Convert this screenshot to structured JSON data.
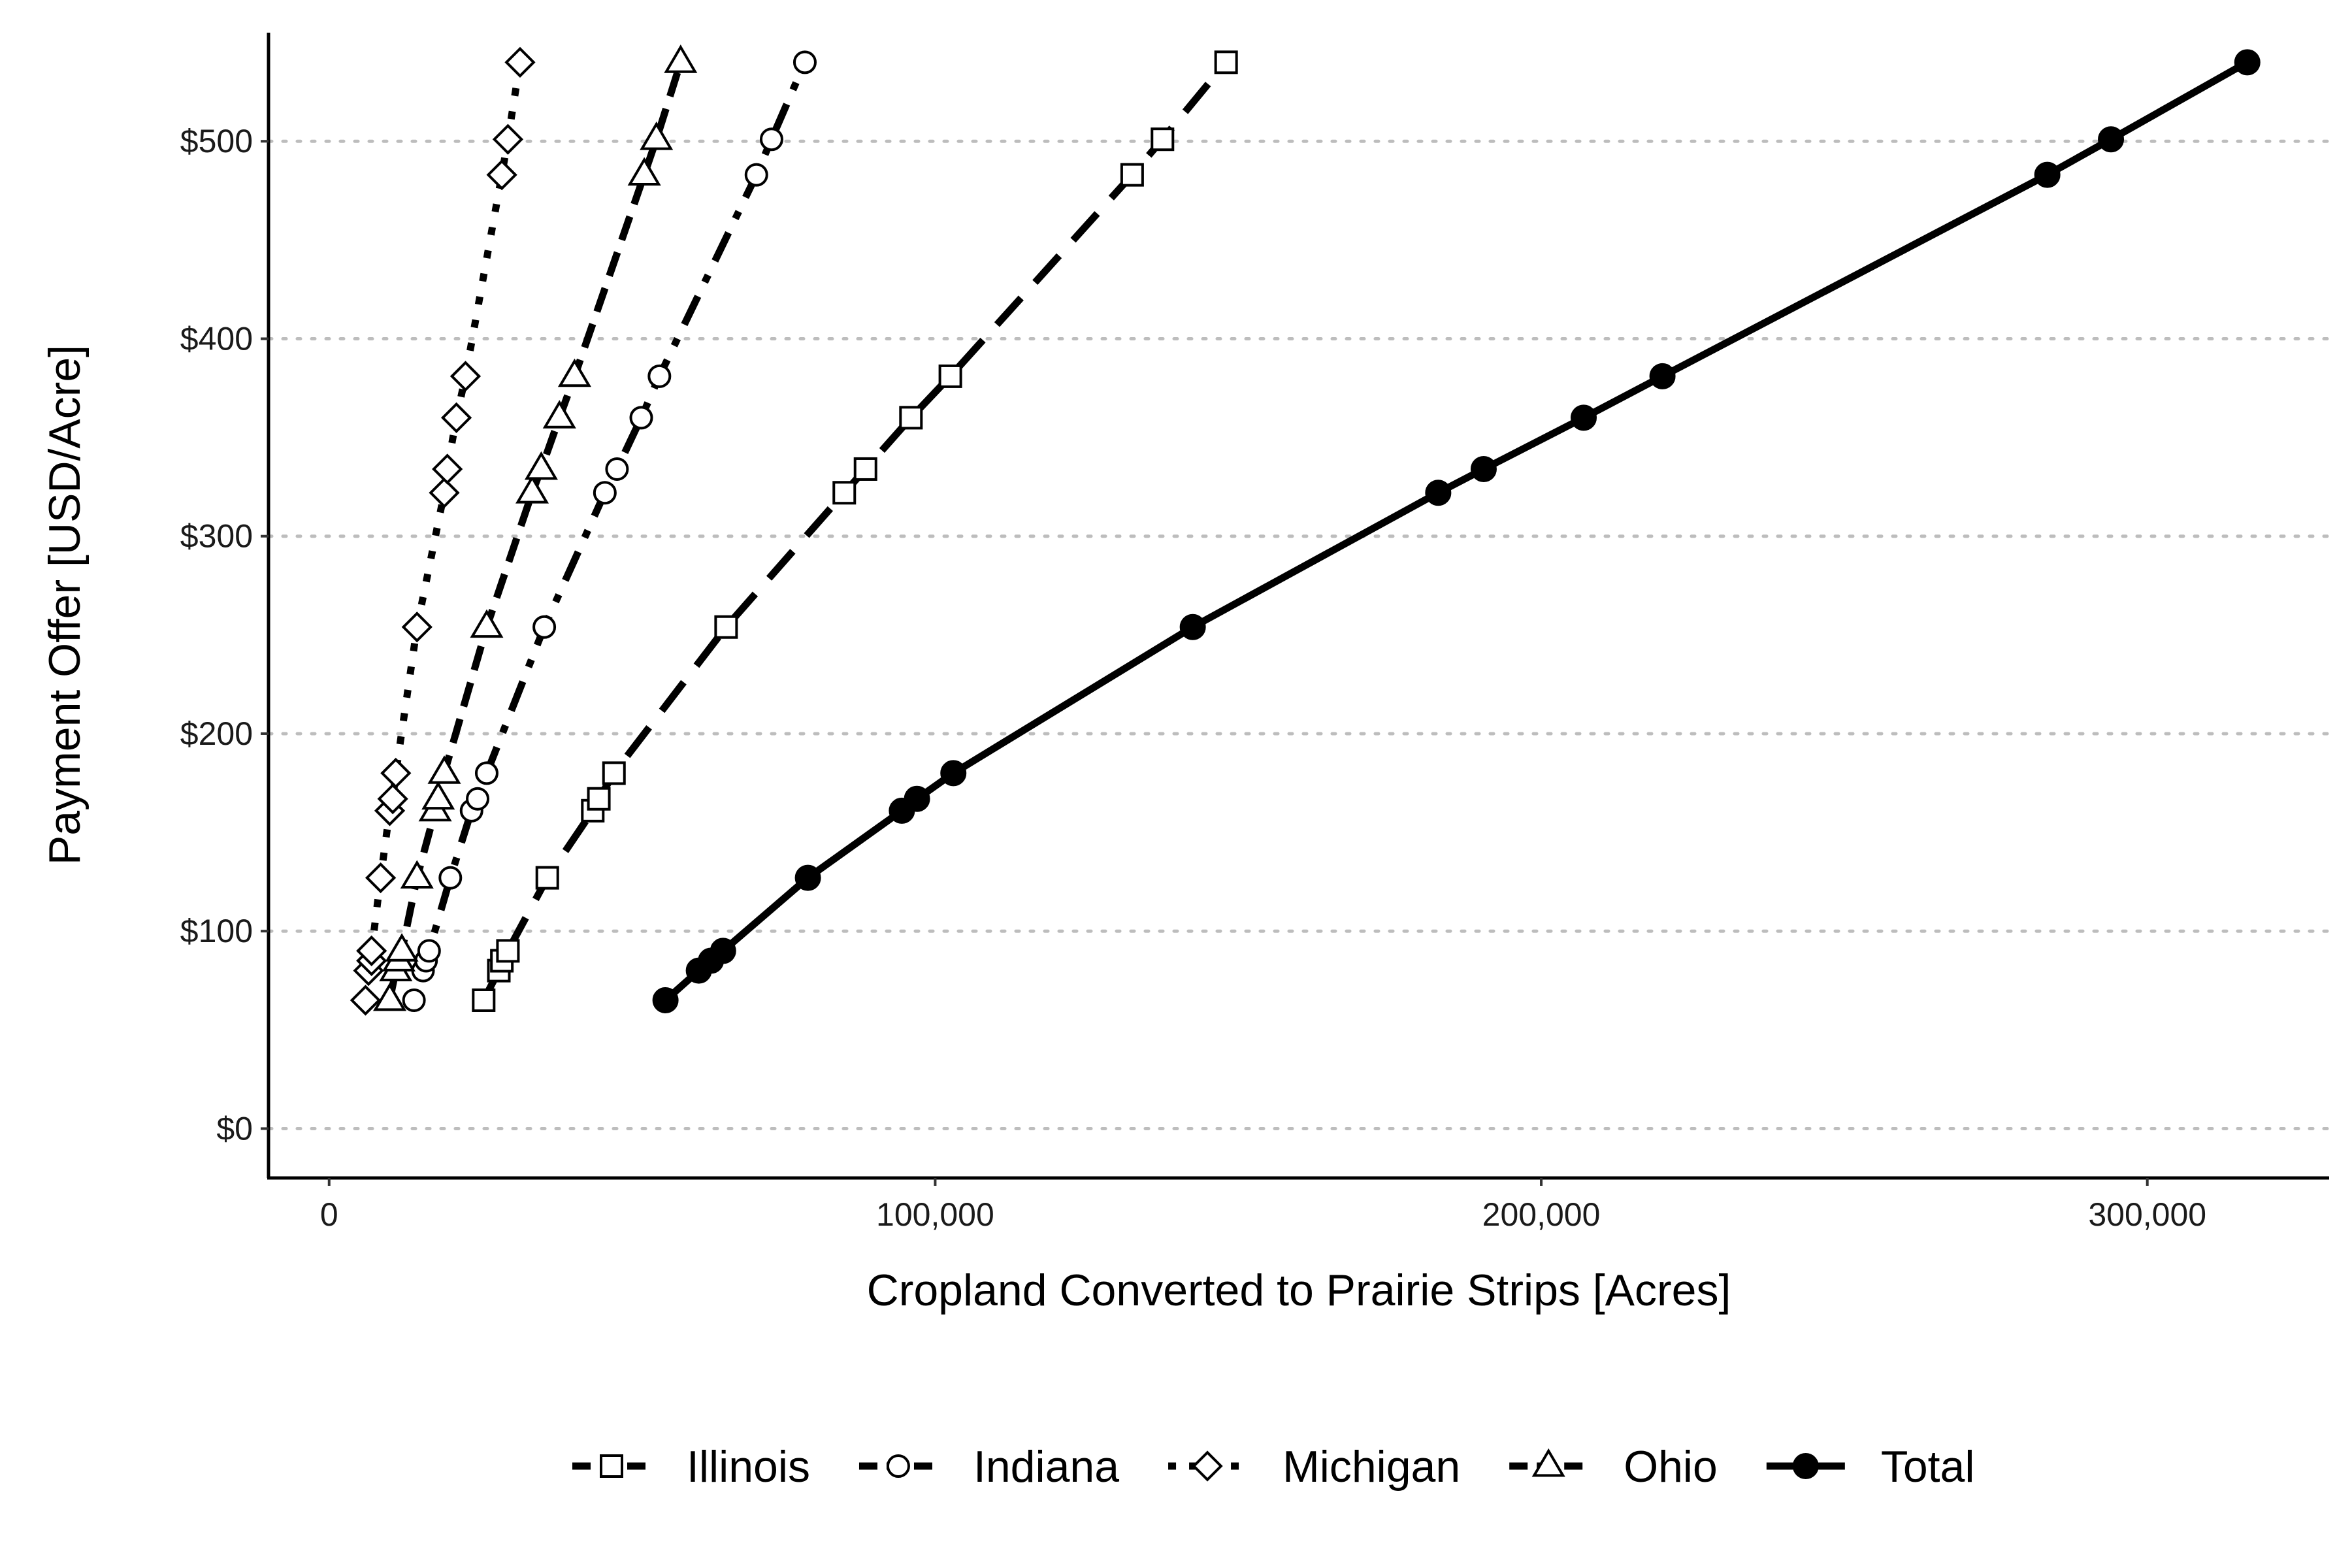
{
  "chart_data": {
    "type": "line",
    "xlabel": "Cropland Converted to Prairie Strips [Acres]",
    "ylabel": "Payment Offer [USD/Acre]",
    "xlim": [
      -10000,
      330000
    ],
    "ylim": [
      -25,
      555
    ],
    "x_ticks": [
      0,
      100000,
      200000,
      300000
    ],
    "x_tick_labels": [
      "0",
      "100,000",
      "200,000",
      "300,000"
    ],
    "y_ticks": [
      0,
      100,
      200,
      300,
      400,
      500
    ],
    "y_tick_labels": [
      "$0",
      "$100",
      "$200",
      "$300",
      "$400",
      "$500"
    ],
    "grid": "horizontal dotted",
    "legend_position": "bottom",
    "colors": {
      "line": "#000000",
      "grid": "#bdbdbd",
      "marker_fill_open": "#ffffff"
    },
    "series": [
      {
        "name": "Illinois",
        "marker": "square",
        "dash": "long-dash",
        "x": [
          25500,
          28000,
          28500,
          29500,
          36000,
          43500,
          44500,
          47000,
          65500,
          85000,
          88500,
          96000,
          102500,
          132500,
          137500,
          148000
        ],
        "y": [
          65,
          80,
          85,
          90,
          127,
          161,
          167,
          180,
          254,
          322,
          334,
          360,
          381,
          483,
          501,
          540
        ]
      },
      {
        "name": "Indiana",
        "marker": "circle",
        "dash": "dot-dash",
        "x": [
          14000,
          15500,
          16000,
          16500,
          20000,
          23500,
          24500,
          26000,
          35500,
          45500,
          47500,
          51500,
          54500,
          70500,
          73000,
          78500
        ],
        "y": [
          65,
          80,
          85,
          90,
          127,
          161,
          167,
          180,
          254,
          322,
          334,
          360,
          381,
          483,
          501,
          540
        ]
      },
      {
        "name": "Michigan",
        "marker": "diamond",
        "dash": "dotted",
        "x": [
          6000,
          6500,
          7000,
          7000,
          8500,
          10000,
          10500,
          11000,
          14500,
          19000,
          19500,
          21000,
          22500,
          28500,
          29500,
          31500
        ],
        "y": [
          65,
          80,
          85,
          90,
          127,
          161,
          167,
          180,
          254,
          322,
          334,
          360,
          381,
          483,
          501,
          540
        ]
      },
      {
        "name": "Ohio",
        "marker": "triangle",
        "dash": "dashed",
        "x": [
          10000,
          11000,
          11500,
          12000,
          14500,
          17500,
          18000,
          19000,
          26000,
          33500,
          35000,
          38000,
          40500,
          52000,
          54000,
          58000
        ],
        "y": [
          65,
          80,
          85,
          90,
          127,
          161,
          167,
          180,
          254,
          322,
          334,
          360,
          381,
          483,
          501,
          540
        ]
      },
      {
        "name": "Total",
        "marker": "filled-circle",
        "dash": "solid",
        "x": [
          55500,
          61000,
          63000,
          65000,
          79000,
          94500,
          97000,
          103000,
          142500,
          183000,
          190500,
          207000,
          220000,
          283500,
          294000,
          316500
        ],
        "y": [
          65,
          80,
          85,
          90,
          127,
          161,
          167,
          180,
          254,
          322,
          334,
          360,
          381,
          483,
          501,
          540
        ]
      }
    ]
  }
}
